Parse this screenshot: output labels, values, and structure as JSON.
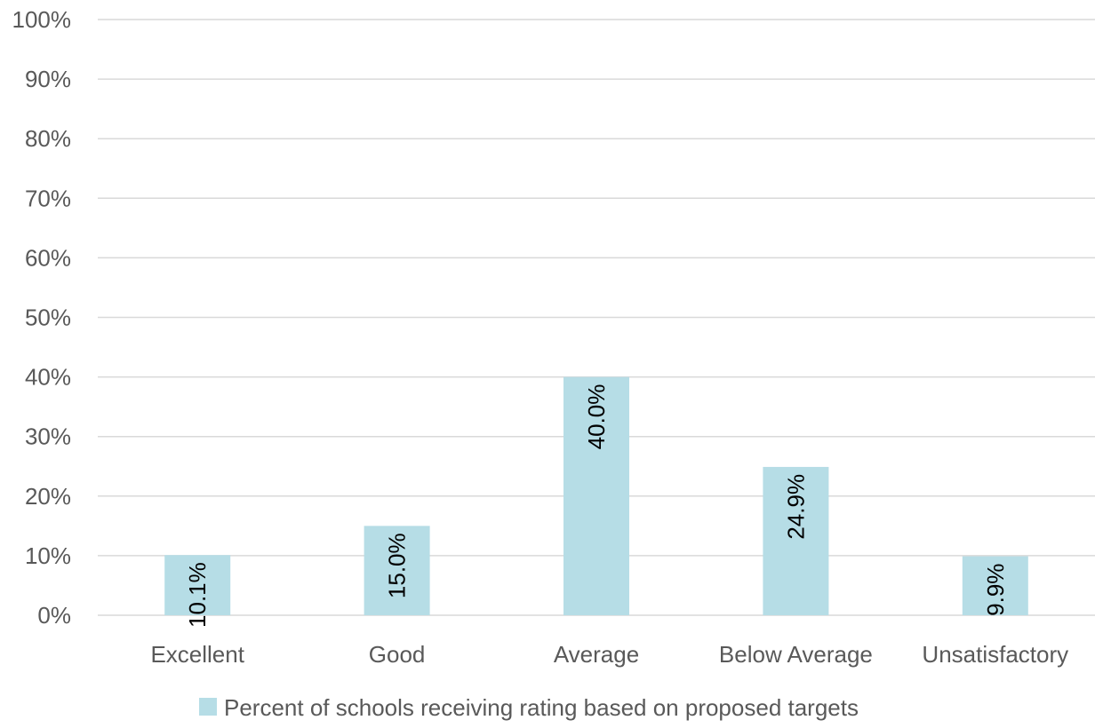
{
  "chart_data": {
    "type": "bar",
    "categories": [
      "Excellent",
      "Good",
      "Average",
      "Below Average",
      "Unsatisfactory"
    ],
    "series": [
      {
        "name": "Percent of schools receiving rating based on proposed targets",
        "values": [
          10.1,
          15.0,
          40.0,
          24.9,
          9.9
        ],
        "data_labels": [
          "10.1%",
          "15.0%",
          "40.0%",
          "24.9%",
          "9.9%"
        ],
        "color": "#b6dde6"
      }
    ],
    "ylim": [
      0,
      100
    ],
    "yticks": [
      0,
      10,
      20,
      30,
      40,
      50,
      60,
      70,
      80,
      90,
      100
    ],
    "ytick_labels": [
      "0%",
      "10%",
      "20%",
      "30%",
      "40%",
      "50%",
      "60%",
      "70%",
      "80%",
      "90%",
      "100%"
    ],
    "grid": true,
    "gridline_color": "#d9d9d9",
    "text_color": "#595959",
    "label_color": "#000000",
    "legend_position": "bottom"
  }
}
